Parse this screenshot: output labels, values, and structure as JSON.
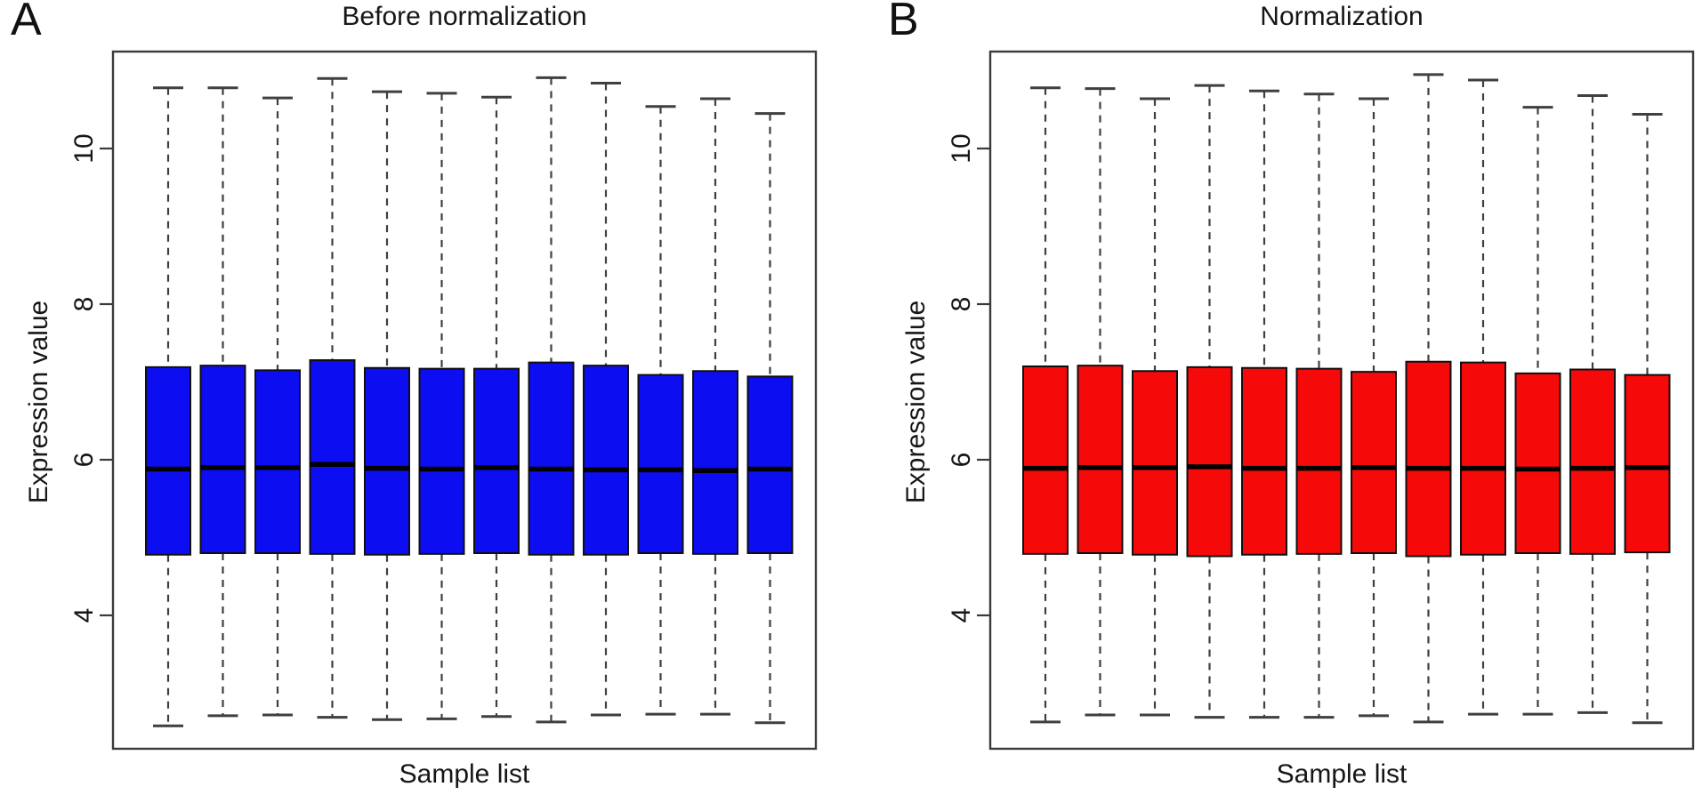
{
  "figure": {
    "background": "#ffffff",
    "frame_color": "#3a3a3a",
    "whisker_color": "#3f3f3f",
    "median_color": "#000000",
    "box_border_color": "#101010"
  },
  "chart_data": [
    {
      "type": "boxplot",
      "corner_label": "A",
      "title": "Before normalization",
      "xlabel": "Sample list",
      "ylabel": "Expression value",
      "yticks": [
        4,
        6,
        8,
        10
      ],
      "ylim": [
        2.3,
        11.2
      ],
      "grid": false,
      "legend": "none",
      "box_color": "#0d0df2",
      "n_boxes": 12,
      "boxes": [
        {
          "lower_whisker": 2.58,
          "q1": 4.78,
          "median": 5.88,
          "q3": 7.19,
          "upper_whisker": 10.78
        },
        {
          "lower_whisker": 2.71,
          "q1": 4.8,
          "median": 5.9,
          "q3": 7.21,
          "upper_whisker": 10.78
        },
        {
          "lower_whisker": 2.72,
          "q1": 4.8,
          "median": 5.9,
          "q3": 7.15,
          "upper_whisker": 10.65
        },
        {
          "lower_whisker": 2.69,
          "q1": 4.79,
          "median": 5.94,
          "q3": 7.28,
          "upper_whisker": 10.9
        },
        {
          "lower_whisker": 2.66,
          "q1": 4.78,
          "median": 5.89,
          "q3": 7.18,
          "upper_whisker": 10.73
        },
        {
          "lower_whisker": 2.67,
          "q1": 4.79,
          "median": 5.88,
          "q3": 7.17,
          "upper_whisker": 10.71
        },
        {
          "lower_whisker": 2.7,
          "q1": 4.8,
          "median": 5.9,
          "q3": 7.17,
          "upper_whisker": 10.66
        },
        {
          "lower_whisker": 2.63,
          "q1": 4.78,
          "median": 5.88,
          "q3": 7.25,
          "upper_whisker": 10.91
        },
        {
          "lower_whisker": 2.72,
          "q1": 4.78,
          "median": 5.87,
          "q3": 7.21,
          "upper_whisker": 10.84
        },
        {
          "lower_whisker": 2.73,
          "q1": 4.8,
          "median": 5.87,
          "q3": 7.09,
          "upper_whisker": 10.54
        },
        {
          "lower_whisker": 2.73,
          "q1": 4.79,
          "median": 5.86,
          "q3": 7.14,
          "upper_whisker": 10.64
        },
        {
          "lower_whisker": 2.62,
          "q1": 4.8,
          "median": 5.88,
          "q3": 7.07,
          "upper_whisker": 10.45
        }
      ]
    },
    {
      "type": "boxplot",
      "corner_label": "B",
      "title": "Normalization",
      "xlabel": "Sample list",
      "ylabel": "Expression value",
      "yticks": [
        4,
        6,
        8,
        10
      ],
      "ylim": [
        2.3,
        11.2
      ],
      "grid": false,
      "legend": "none",
      "box_color": "#f60909",
      "n_boxes": 12,
      "boxes": [
        {
          "lower_whisker": 2.63,
          "q1": 4.79,
          "median": 5.89,
          "q3": 7.2,
          "upper_whisker": 10.78
        },
        {
          "lower_whisker": 2.72,
          "q1": 4.8,
          "median": 5.9,
          "q3": 7.21,
          "upper_whisker": 10.77
        },
        {
          "lower_whisker": 2.72,
          "q1": 4.78,
          "median": 5.9,
          "q3": 7.14,
          "upper_whisker": 10.64
        },
        {
          "lower_whisker": 2.69,
          "q1": 4.76,
          "median": 5.91,
          "q3": 7.19,
          "upper_whisker": 10.81
        },
        {
          "lower_whisker": 2.69,
          "q1": 4.78,
          "median": 5.89,
          "q3": 7.18,
          "upper_whisker": 10.74
        },
        {
          "lower_whisker": 2.69,
          "q1": 4.79,
          "median": 5.89,
          "q3": 7.17,
          "upper_whisker": 10.7
        },
        {
          "lower_whisker": 2.71,
          "q1": 4.8,
          "median": 5.9,
          "q3": 7.13,
          "upper_whisker": 10.64
        },
        {
          "lower_whisker": 2.63,
          "q1": 4.76,
          "median": 5.89,
          "q3": 7.26,
          "upper_whisker": 10.95
        },
        {
          "lower_whisker": 2.73,
          "q1": 4.78,
          "median": 5.89,
          "q3": 7.25,
          "upper_whisker": 10.88
        },
        {
          "lower_whisker": 2.73,
          "q1": 4.8,
          "median": 5.88,
          "q3": 7.11,
          "upper_whisker": 10.53
        },
        {
          "lower_whisker": 2.75,
          "q1": 4.79,
          "median": 5.89,
          "q3": 7.16,
          "upper_whisker": 10.68
        },
        {
          "lower_whisker": 2.62,
          "q1": 4.81,
          "median": 5.9,
          "q3": 7.09,
          "upper_whisker": 10.44
        }
      ]
    }
  ]
}
